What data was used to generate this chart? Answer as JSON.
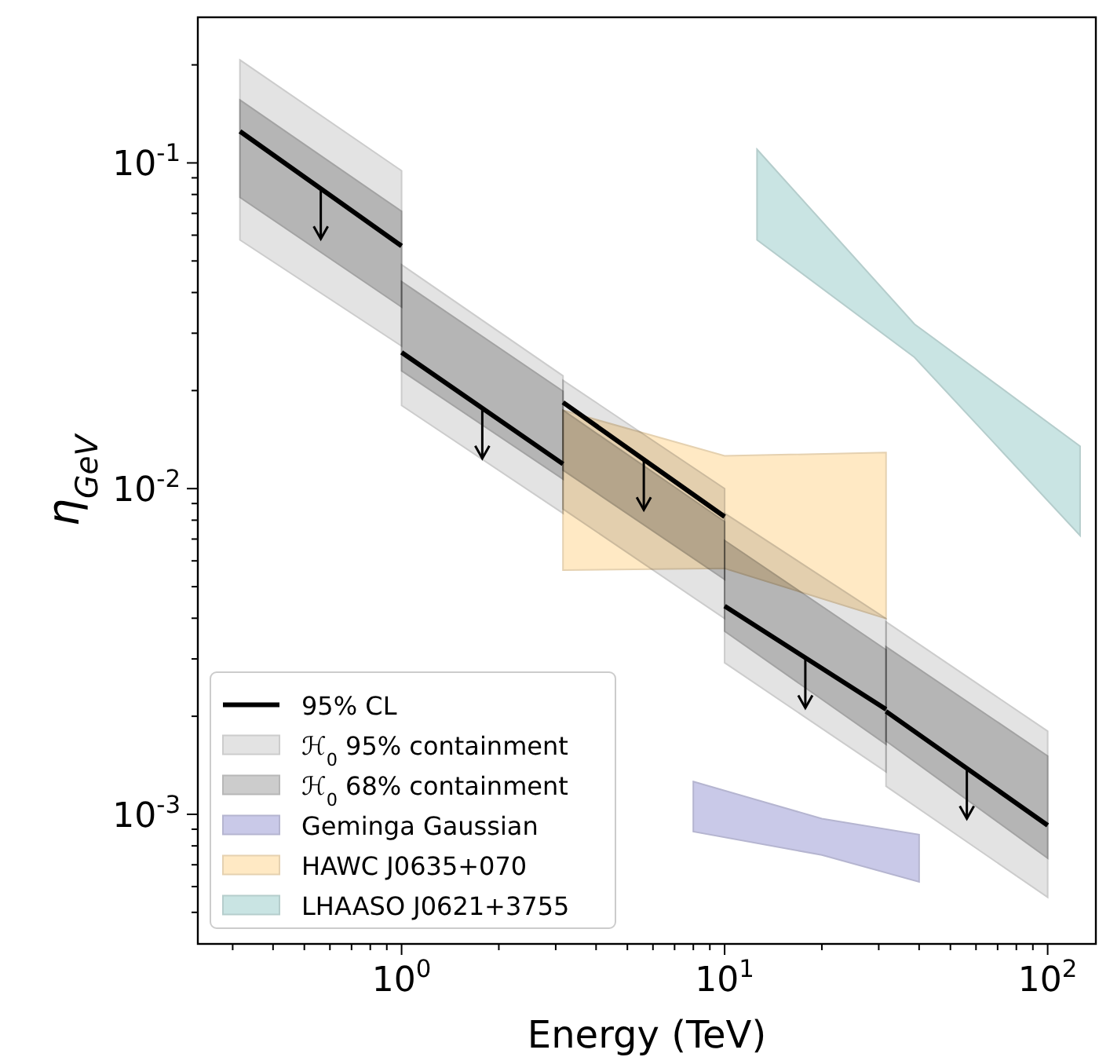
{
  "chart_data": {
    "type": "line",
    "log": "xy",
    "xlabel": "Energy (TeV)",
    "ylabel": "η$_{GeV}$",
    "legend": "bottom left",
    "xlim": [
      0.234,
      141
    ],
    "ylim": [
      0.0004,
      0.28
    ],
    "xticks": [
      {
        "value": 1,
        "label": "10$^{0}$"
      },
      {
        "value": 10,
        "label": "10$^{1}$"
      },
      {
        "value": 100,
        "label": "10$^{2}$"
      },
      {
        "value": 0.3,
        "label": null
      },
      {
        "value": 0.4,
        "label": null
      },
      {
        "value": 0.5,
        "label": null
      },
      {
        "value": 0.6,
        "label": null
      },
      {
        "value": 0.7,
        "label": null
      },
      {
        "value": 0.8,
        "label": null
      },
      {
        "value": 0.9,
        "label": null
      },
      {
        "value": 2,
        "label": null
      },
      {
        "value": 3,
        "label": null
      },
      {
        "value": 4,
        "label": null
      },
      {
        "value": 5,
        "label": null
      },
      {
        "value": 6,
        "label": null
      },
      {
        "value": 7,
        "label": null
      },
      {
        "value": 8,
        "label": null
      },
      {
        "value": 9,
        "label": null
      },
      {
        "value": 20,
        "label": null
      },
      {
        "value": 30,
        "label": null
      },
      {
        "value": 40,
        "label": null
      },
      {
        "value": 50,
        "label": null
      },
      {
        "value": 60,
        "label": null
      },
      {
        "value": 70,
        "label": null
      },
      {
        "value": 80,
        "label": null
      },
      {
        "value": 90,
        "label": null
      }
    ],
    "yticks": [
      {
        "value": 0.001,
        "label": "10$^{-3}$"
      },
      {
        "value": 0.01,
        "label": "10$^{-2}$"
      },
      {
        "value": 0.1,
        "label": "10$^{-1}$"
      },
      {
        "value": 0.0005,
        "label": null
      },
      {
        "value": 0.0006,
        "label": null
      },
      {
        "value": 0.0007,
        "label": null
      },
      {
        "value": 0.0008,
        "label": null
      },
      {
        "value": 0.0009,
        "label": null
      },
      {
        "value": 0.002,
        "label": null
      },
      {
        "value": 0.003,
        "label": null
      },
      {
        "value": 0.004,
        "label": null
      },
      {
        "value": 0.005,
        "label": null
      },
      {
        "value": 0.006,
        "label": null
      },
      {
        "value": 0.007,
        "label": null
      },
      {
        "value": 0.008,
        "label": null
      },
      {
        "value": 0.009,
        "label": null
      },
      {
        "value": 0.02,
        "label": null
      },
      {
        "value": 0.03,
        "label": null
      },
      {
        "value": 0.04,
        "label": null
      },
      {
        "value": 0.05,
        "label": null
      },
      {
        "value": 0.06,
        "label": null
      },
      {
        "value": 0.07,
        "label": null
      },
      {
        "value": 0.08,
        "label": null
      },
      {
        "value": 0.09,
        "label": null
      },
      {
        "value": 0.2,
        "label": null
      }
    ],
    "series": [
      {
        "name": "95% CL",
        "color": "#000000",
        "x": [
          0.316,
          1,
          null,
          1,
          3.16,
          null,
          3.16,
          10,
          null,
          10,
          31.6,
          null,
          31.6,
          100
        ],
        "values": [
          0.125,
          0.0556,
          null,
          0.0262,
          0.0119,
          null,
          0.0184,
          0.0082,
          null,
          0.00436,
          0.0021,
          null,
          0.00207,
          0.000925
        ]
      },
      {
        "name": "ℋ$_{0}$ 95% containment",
        "type": "area",
        "color": "#e3e3e3",
        "x": [
          0.316,
          1
        ],
        "values": [
          null,
          null
        ],
        "upper": [
          0.207,
          0.0946
        ],
        "lower": [
          0.058,
          0.0274
        ]
      },
      {
        "type": "area",
        "color": "#e3e3e3",
        "x": [
          1,
          3.16
        ],
        "values": [
          null,
          null
        ],
        "upper": [
          0.0487,
          0.0222
        ],
        "lower": [
          0.018,
          0.0084
        ]
      },
      {
        "type": "area",
        "color": "#e3e3e3",
        "x": [
          3.16,
          10
        ],
        "values": [
          null,
          null
        ],
        "upper": [
          0.0215,
          0.01
        ],
        "lower": [
          0.00866,
          0.00399
        ]
      },
      {
        "type": "area",
        "color": "#e3e3e3",
        "x": [
          10,
          31.6
        ],
        "values": [
          null,
          null
        ],
        "upper": [
          0.0084,
          0.00399
        ],
        "lower": [
          0.00292,
          0.00135
        ]
      },
      {
        "type": "area",
        "color": "#e3e3e3",
        "x": [
          31.6,
          100
        ],
        "values": [
          null,
          null
        ],
        "upper": [
          0.0039,
          0.0018
        ],
        "lower": [
          0.00122,
          0.000556
        ]
      },
      {
        "name": "ℋ$_{0}$ 68% containment",
        "type": "area",
        "color": "#cccccc",
        "x": [
          0.316,
          1
        ],
        "values": [
          null,
          null
        ],
        "upper": [
          0.156,
          0.071
        ],
        "lower": [
          0.0784,
          0.0361
        ]
      },
      {
        "type": "area",
        "color": "#cccccc",
        "x": [
          1,
          3.16
        ],
        "values": [
          null,
          null
        ],
        "upper": [
          0.0432,
          0.0199
        ],
        "lower": [
          0.023,
          0.0107
        ]
      },
      {
        "type": "area",
        "color": "#cccccc",
        "x": [
          3.16,
          10
        ],
        "values": [
          null,
          null
        ],
        "upper": [
          0.0174,
          0.00792
        ],
        "lower": [
          0.0114,
          0.00526
        ]
      },
      {
        "type": "area",
        "color": "#cccccc",
        "x": [
          10,
          31.6
        ],
        "values": [
          null,
          null
        ],
        "upper": [
          0.00693,
          0.0032
        ],
        "lower": [
          0.00365,
          0.00164
        ]
      },
      {
        "type": "area",
        "color": "#cccccc",
        "x": [
          31.6,
          100
        ],
        "values": [
          null,
          null
        ],
        "upper": [
          0.00327,
          0.00151
        ],
        "lower": [
          0.00168,
          0.000733
        ]
      },
      {
        "name": "Geminga Gaussian",
        "type": "area",
        "color": "#c9c9e8",
        "x": [
          8,
          20,
          40
        ],
        "values": [
          null,
          null,
          null
        ],
        "upper": [
          0.00126,
          0.00097,
          0.000866
        ],
        "lower": [
          0.000885,
          0.00075,
          0.00062
        ]
      },
      {
        "name": "HAWC J0635+070",
        "type": "area",
        "color": "#ffe9c4",
        "x": [
          3.16,
          10,
          31.6
        ],
        "values": [
          null,
          null,
          null
        ],
        "upper": [
          0.0174,
          0.0126,
          0.0129
        ],
        "lower": [
          0.00562,
          0.00569,
          0.00399
        ]
      },
      {
        "name": "LHAASO J0621+3755",
        "type": "area",
        "color": "#c9e4e3",
        "x": [
          12.6,
          38.7,
          126
        ],
        "values": [
          null,
          null,
          null
        ],
        "upper": [
          0.11,
          0.032,
          0.0135
        ],
        "lower": [
          0.058,
          0.0253,
          0.00718
        ]
      }
    ]
  }
}
